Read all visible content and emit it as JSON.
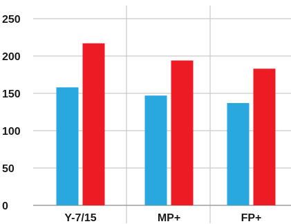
{
  "chart_data": {
    "type": "bar",
    "title": "",
    "xlabel": "",
    "ylabel": "",
    "categories": [
      "Y-7/15",
      "MP+",
      "FP+"
    ],
    "series": [
      {
        "color": "#29a8e0",
        "values": [
          158,
          147,
          137
        ]
      },
      {
        "color": "#ed1c24",
        "values": [
          217,
          194,
          183
        ]
      }
    ],
    "ylim": [
      0,
      250
    ],
    "yticks": [
      0,
      50,
      100,
      150,
      200,
      250
    ],
    "grid": true,
    "gridline_color": "#bdbdbd",
    "legend": "none"
  }
}
